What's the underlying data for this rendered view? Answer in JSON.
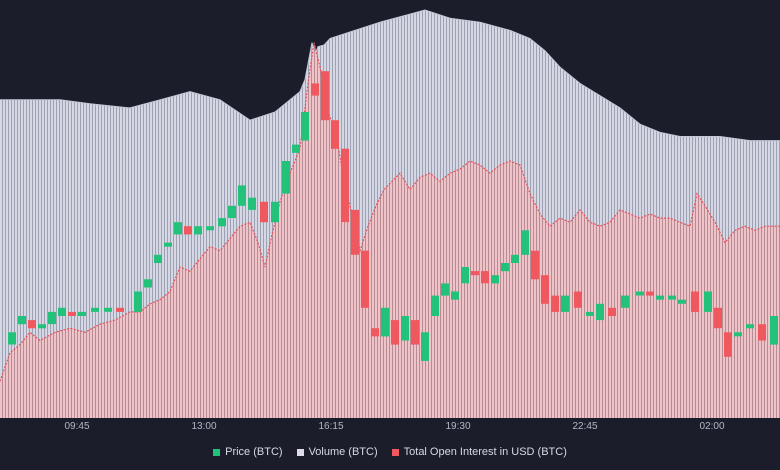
{
  "colors": {
    "background": "#1b1d2b",
    "volume_fill": "#dcdde8",
    "volume_line": "#c5c7d6",
    "oi_fill": "#f2c4c8",
    "oi_line": "#e8505b",
    "price_up": "#22c27a",
    "price_down": "#f0585f"
  },
  "chart_data": {
    "type": "line",
    "title": "",
    "xlabel": "",
    "ylabel": "",
    "x_tick_labels": [
      "09:45",
      "13:00",
      "16:15",
      "19:30",
      "22:45",
      "02:00"
    ],
    "grid": false,
    "legend_position": "bottom-center",
    "value_units": "relative 0-100 (no y-axis printed)",
    "volume_profile": [
      [
        0,
        78
      ],
      [
        60,
        78
      ],
      [
        90,
        77
      ],
      [
        130,
        76
      ],
      [
        160,
        78
      ],
      [
        190,
        80
      ],
      [
        220,
        78
      ],
      [
        250,
        73
      ],
      [
        275,
        75
      ],
      [
        300,
        80
      ],
      [
        315,
        89
      ],
      [
        330,
        93
      ],
      [
        355,
        95
      ],
      [
        380,
        97
      ],
      [
        410,
        99
      ],
      [
        425,
        100
      ],
      [
        450,
        98
      ],
      [
        480,
        97
      ],
      [
        510,
        95
      ],
      [
        530,
        93
      ],
      [
        545,
        90
      ],
      [
        560,
        86
      ],
      [
        580,
        82
      ],
      [
        600,
        79
      ],
      [
        620,
        76
      ],
      [
        640,
        72
      ],
      [
        660,
        70
      ],
      [
        680,
        69
      ],
      [
        720,
        69
      ],
      [
        750,
        68
      ],
      [
        780,
        68
      ]
    ],
    "volume_spike": [
      [
        305,
        82
      ],
      [
        312,
        92
      ],
      [
        318,
        91
      ],
      [
        324,
        85
      ],
      [
        332,
        83
      ]
    ],
    "open_interest": [
      [
        0,
        9
      ],
      [
        10,
        16
      ],
      [
        20,
        18
      ],
      [
        30,
        21
      ],
      [
        40,
        19
      ],
      [
        55,
        21
      ],
      [
        70,
        22
      ],
      [
        85,
        21
      ],
      [
        100,
        23
      ],
      [
        115,
        24
      ],
      [
        130,
        26
      ],
      [
        140,
        26
      ],
      [
        150,
        28
      ],
      [
        160,
        29
      ],
      [
        170,
        31
      ],
      [
        180,
        37
      ],
      [
        190,
        36
      ],
      [
        200,
        39
      ],
      [
        210,
        42
      ],
      [
        220,
        41
      ],
      [
        230,
        44
      ],
      [
        240,
        47
      ],
      [
        250,
        48
      ],
      [
        258,
        43
      ],
      [
        265,
        37
      ],
      [
        272,
        45
      ],
      [
        280,
        53
      ],
      [
        290,
        60
      ],
      [
        300,
        66
      ],
      [
        308,
        82
      ],
      [
        314,
        92
      ],
      [
        320,
        86
      ],
      [
        328,
        75
      ],
      [
        336,
        70
      ],
      [
        344,
        58
      ],
      [
        352,
        50
      ],
      [
        360,
        41
      ],
      [
        368,
        47
      ],
      [
        376,
        52
      ],
      [
        384,
        56
      ],
      [
        392,
        58
      ],
      [
        400,
        60
      ],
      [
        410,
        56
      ],
      [
        420,
        59
      ],
      [
        430,
        60
      ],
      [
        440,
        58
      ],
      [
        450,
        60
      ],
      [
        460,
        61
      ],
      [
        470,
        63
      ],
      [
        480,
        62
      ],
      [
        490,
        60
      ],
      [
        500,
        62
      ],
      [
        510,
        63
      ],
      [
        520,
        62
      ],
      [
        530,
        55
      ],
      [
        540,
        50
      ],
      [
        550,
        47
      ],
      [
        560,
        49
      ],
      [
        570,
        48
      ],
      [
        580,
        51
      ],
      [
        590,
        48
      ],
      [
        600,
        47
      ],
      [
        610,
        48
      ],
      [
        620,
        51
      ],
      [
        630,
        50
      ],
      [
        640,
        49
      ],
      [
        650,
        50
      ],
      [
        660,
        49
      ],
      [
        670,
        49
      ],
      [
        680,
        48
      ],
      [
        690,
        47
      ],
      [
        697,
        55
      ],
      [
        705,
        52
      ],
      [
        715,
        48
      ],
      [
        725,
        43
      ],
      [
        735,
        46
      ],
      [
        745,
        47
      ],
      [
        755,
        46
      ],
      [
        765,
        47
      ],
      [
        780,
        47
      ]
    ],
    "price_candles": [
      {
        "x": 12,
        "open": 18,
        "close": 21
      },
      {
        "x": 22,
        "open": 23,
        "close": 25
      },
      {
        "x": 32,
        "open": 24,
        "close": 22
      },
      {
        "x": 42,
        "open": 22,
        "close": 23
      },
      {
        "x": 52,
        "open": 23,
        "close": 26
      },
      {
        "x": 62,
        "open": 25,
        "close": 27
      },
      {
        "x": 72,
        "open": 26,
        "close": 25
      },
      {
        "x": 82,
        "open": 25,
        "close": 26
      },
      {
        "x": 95,
        "open": 26,
        "close": 27
      },
      {
        "x": 108,
        "open": 27,
        "close": 27
      },
      {
        "x": 120,
        "open": 27,
        "close": 26
      },
      {
        "x": 138,
        "open": 26,
        "close": 31
      },
      {
        "x": 148,
        "open": 32,
        "close": 34
      },
      {
        "x": 158,
        "open": 38,
        "close": 40
      },
      {
        "x": 168,
        "open": 42,
        "close": 43
      },
      {
        "x": 178,
        "open": 45,
        "close": 48
      },
      {
        "x": 188,
        "open": 47,
        "close": 45
      },
      {
        "x": 198,
        "open": 45,
        "close": 47
      },
      {
        "x": 210,
        "open": 46,
        "close": 47
      },
      {
        "x": 222,
        "open": 47,
        "close": 49
      },
      {
        "x": 232,
        "open": 49,
        "close": 52
      },
      {
        "x": 242,
        "open": 52,
        "close": 57
      },
      {
        "x": 252,
        "open": 51,
        "close": 54
      },
      {
        "x": 264,
        "open": 53,
        "close": 48
      },
      {
        "x": 275,
        "open": 48,
        "close": 53
      },
      {
        "x": 286,
        "open": 55,
        "close": 63
      },
      {
        "x": 296,
        "open": 65,
        "close": 67
      },
      {
        "x": 305,
        "open": 68,
        "close": 75
      },
      {
        "x": 315,
        "open": 82,
        "close": 79
      },
      {
        "x": 325,
        "open": 85,
        "close": 73
      },
      {
        "x": 335,
        "open": 73,
        "close": 66
      },
      {
        "x": 345,
        "open": 66,
        "close": 48
      },
      {
        "x": 355,
        "open": 51,
        "close": 40
      },
      {
        "x": 365,
        "open": 41,
        "close": 27
      },
      {
        "x": 375,
        "open": 22,
        "close": 20
      },
      {
        "x": 385,
        "open": 20,
        "close": 27
      },
      {
        "x": 395,
        "open": 24,
        "close": 18
      },
      {
        "x": 405,
        "open": 19,
        "close": 25
      },
      {
        "x": 415,
        "open": 24,
        "close": 18
      },
      {
        "x": 425,
        "open": 14,
        "close": 21
      },
      {
        "x": 435,
        "open": 25,
        "close": 30
      },
      {
        "x": 445,
        "open": 30,
        "close": 33
      },
      {
        "x": 455,
        "open": 29,
        "close": 31
      },
      {
        "x": 465,
        "open": 33,
        "close": 37
      },
      {
        "x": 475,
        "open": 36,
        "close": 35
      },
      {
        "x": 485,
        "open": 36,
        "close": 33
      },
      {
        "x": 495,
        "open": 33,
        "close": 35
      },
      {
        "x": 505,
        "open": 36,
        "close": 38
      },
      {
        "x": 515,
        "open": 38,
        "close": 40
      },
      {
        "x": 525,
        "open": 40,
        "close": 46
      },
      {
        "x": 535,
        "open": 41,
        "close": 34
      },
      {
        "x": 545,
        "open": 35,
        "close": 28
      },
      {
        "x": 555,
        "open": 30,
        "close": 26
      },
      {
        "x": 565,
        "open": 26,
        "close": 30
      },
      {
        "x": 578,
        "open": 31,
        "close": 27
      },
      {
        "x": 590,
        "open": 26,
        "close": 26
      },
      {
        "x": 600,
        "open": 24,
        "close": 28
      },
      {
        "x": 612,
        "open": 27,
        "close": 25
      },
      {
        "x": 625,
        "open": 27,
        "close": 30
      },
      {
        "x": 640,
        "open": 31,
        "close": 31
      },
      {
        "x": 650,
        "open": 31,
        "close": 30
      },
      {
        "x": 660,
        "open": 29,
        "close": 30
      },
      {
        "x": 672,
        "open": 30,
        "close": 30
      },
      {
        "x": 682,
        "open": 28,
        "close": 29
      },
      {
        "x": 695,
        "open": 31,
        "close": 26
      },
      {
        "x": 708,
        "open": 26,
        "close": 31
      },
      {
        "x": 718,
        "open": 27,
        "close": 22
      },
      {
        "x": 728,
        "open": 21,
        "close": 15
      },
      {
        "x": 738,
        "open": 21,
        "close": 21
      },
      {
        "x": 750,
        "open": 22,
        "close": 23
      },
      {
        "x": 762,
        "open": 23,
        "close": 19
      },
      {
        "x": 774,
        "open": 18,
        "close": 25
      }
    ],
    "legend": [
      {
        "label": "Price (BTC)",
        "color": "#22c27a"
      },
      {
        "label": "Volume (BTC)",
        "color": "#dcdde8"
      },
      {
        "label": "Total Open Interest in USD (BTC)",
        "color": "#f0585f"
      }
    ]
  }
}
